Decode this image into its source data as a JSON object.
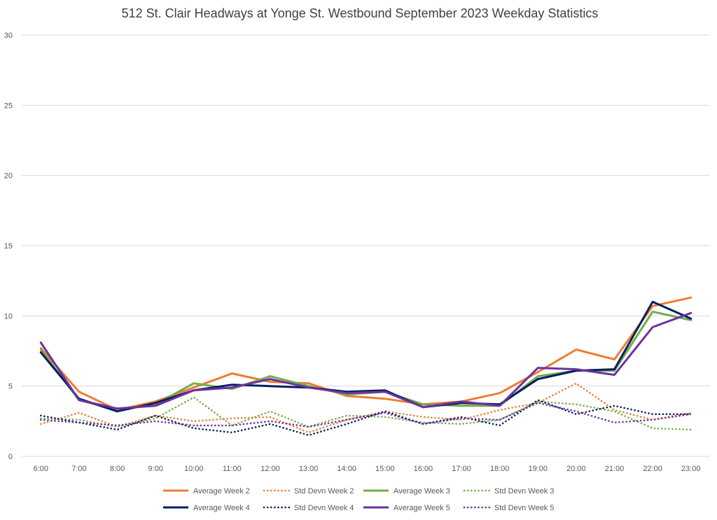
{
  "chart_data": {
    "type": "line",
    "title": "512 St. Clair Headways at Yonge St. Westbound September 2023 Weekday Statistics",
    "xlabel": "",
    "ylabel": "",
    "categories": [
      "6:00",
      "7:00",
      "8:00",
      "9:00",
      "10:00",
      "11:00",
      "12:00",
      "13:00",
      "14:00",
      "15:00",
      "16:00",
      "17:00",
      "18:00",
      "19:00",
      "20:00",
      "21:00",
      "22:00",
      "23:00"
    ],
    "ylim": [
      0,
      30
    ],
    "yticks": [
      0,
      5,
      10,
      15,
      20,
      25,
      30
    ],
    "grid": true,
    "legend_position": "bottom",
    "series": [
      {
        "name": "Average Week 2",
        "color": "#ed7d31",
        "style": "solid",
        "values": [
          7.7,
          4.6,
          3.3,
          3.9,
          4.9,
          5.9,
          5.3,
          5.2,
          4.3,
          4.1,
          3.7,
          3.9,
          4.5,
          6.0,
          7.6,
          6.9,
          10.7,
          11.3
        ]
      },
      {
        "name": "Std Devn Week 2",
        "color": "#ed7d31",
        "style": "dotted",
        "values": [
          2.3,
          3.1,
          2.1,
          2.9,
          2.5,
          2.7,
          2.8,
          1.7,
          2.6,
          3.2,
          2.8,
          2.6,
          3.3,
          3.8,
          5.2,
          3.3,
          2.6,
          3.1
        ]
      },
      {
        "name": "Average Week 3",
        "color": "#70ad47",
        "style": "solid",
        "values": [
          7.6,
          4.0,
          3.3,
          3.7,
          5.2,
          4.8,
          5.7,
          5.0,
          4.4,
          4.6,
          3.7,
          3.6,
          3.6,
          5.7,
          6.1,
          6.1,
          10.3,
          9.7
        ]
      },
      {
        "name": "Std Devn Week 3",
        "color": "#70ad47",
        "style": "dotted",
        "values": [
          2.7,
          2.6,
          2.1,
          2.7,
          4.2,
          2.2,
          3.2,
          2.1,
          2.9,
          2.8,
          2.4,
          2.3,
          2.6,
          3.9,
          3.7,
          3.2,
          2.0,
          1.9
        ]
      },
      {
        "name": "Average Week 4",
        "color": "#002060",
        "style": "solid",
        "values": [
          7.4,
          4.1,
          3.2,
          3.8,
          4.7,
          5.1,
          5.0,
          4.9,
          4.6,
          4.7,
          3.5,
          3.8,
          3.7,
          5.5,
          6.1,
          6.2,
          11.0,
          9.8
        ]
      },
      {
        "name": "Std Devn Week 4",
        "color": "#002060",
        "style": "dotted",
        "values": [
          2.9,
          2.4,
          1.9,
          2.9,
          2.0,
          1.7,
          2.3,
          1.5,
          2.3,
          3.2,
          2.3,
          2.8,
          2.2,
          4.0,
          3.0,
          3.6,
          3.0,
          3.0
        ]
      },
      {
        "name": "Average Week 5",
        "color": "#7030a0",
        "style": "solid",
        "values": [
          8.1,
          4.0,
          3.4,
          3.6,
          4.7,
          4.9,
          5.5,
          4.9,
          4.5,
          4.6,
          3.5,
          3.9,
          3.6,
          6.3,
          6.2,
          5.8,
          9.2,
          10.2
        ]
      },
      {
        "name": "Std Devn Week 5",
        "color": "#7030a0",
        "style": "dotted",
        "values": [
          2.6,
          2.4,
          2.2,
          2.5,
          2.2,
          2.2,
          2.5,
          2.1,
          2.6,
          3.1,
          2.3,
          2.7,
          2.6,
          3.8,
          3.2,
          2.4,
          2.6,
          3.0
        ]
      }
    ]
  }
}
